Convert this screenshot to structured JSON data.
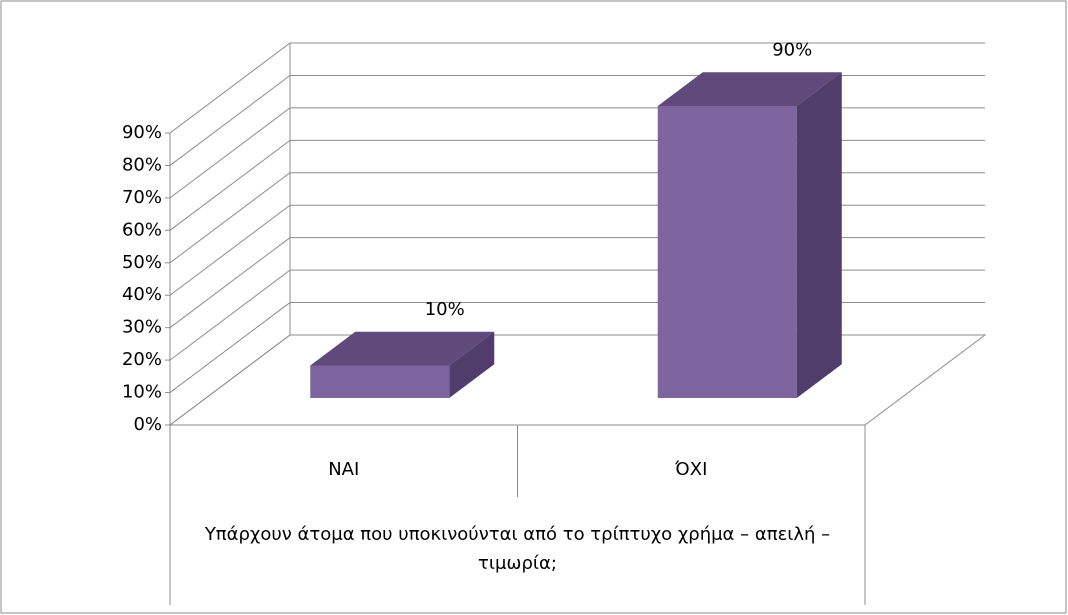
{
  "chart_data": {
    "type": "bar3d",
    "categories": [
      "ΝΑΙ",
      "ΌΧΙ"
    ],
    "values": [
      10,
      90
    ],
    "value_labels": [
      "10%",
      "90%"
    ],
    "x_label": "Υπάρχουν άτομα που υποκινούνται από το τρίπτυχο χρήμα – απειλή – τιμωρία;",
    "color": "#7f65a0",
    "ylim": [
      0,
      90
    ],
    "yticks": [
      {
        "value": 0,
        "label": "0%"
      },
      {
        "value": 10,
        "label": "10%"
      },
      {
        "value": 20,
        "label": "20%"
      },
      {
        "value": 30,
        "label": "30%"
      },
      {
        "value": 40,
        "label": "40%"
      },
      {
        "value": 50,
        "label": "50%"
      },
      {
        "value": 60,
        "label": "60%"
      },
      {
        "value": 70,
        "label": "70%"
      },
      {
        "value": 80,
        "label": "80%"
      },
      {
        "value": 90,
        "label": "90%"
      }
    ],
    "grid": true
  }
}
